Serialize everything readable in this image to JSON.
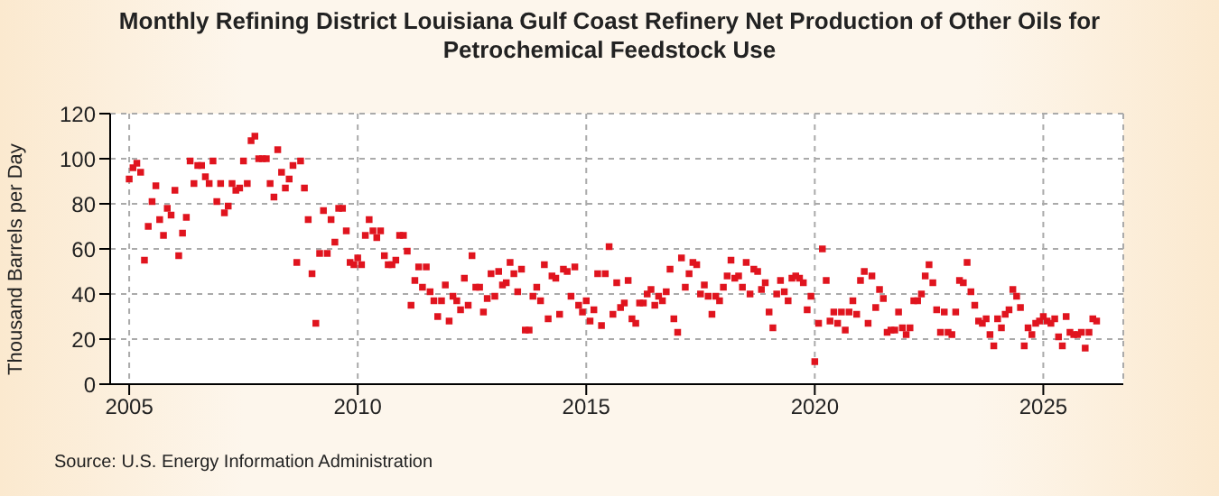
{
  "chart_data": {
    "type": "scatter",
    "title": "Monthly Refining District Louisiana Gulf Coast Refinery Net Production of Other Oils for Petrochemical Feedstock Use",
    "ylabel": "Thousand Barrels per Day",
    "annotations": [
      "Source: U.S. Energy Information Administration"
    ],
    "xlim": [
      "2004-08",
      "2026-10"
    ],
    "xticks": [
      "2005",
      "2010",
      "2015",
      "2020",
      "2025"
    ],
    "ylim": [
      0,
      120
    ],
    "yticks": [
      0,
      20,
      40,
      60,
      80,
      100,
      120
    ],
    "grid": true,
    "marker": "square",
    "series": [
      {
        "color": "#e0141e",
        "x": [
          "2005-01",
          "2005-02",
          "2005-03",
          "2005-04",
          "2005-05",
          "2005-06",
          "2005-07",
          "2005-08",
          "2005-09",
          "2005-10",
          "2005-11",
          "2005-12",
          "2006-01",
          "2006-02",
          "2006-03",
          "2006-04",
          "2006-05",
          "2006-06",
          "2006-07",
          "2006-08",
          "2006-09",
          "2006-10",
          "2006-11",
          "2006-12",
          "2007-01",
          "2007-02",
          "2007-03",
          "2007-04",
          "2007-05",
          "2007-06",
          "2007-07",
          "2007-08",
          "2007-09",
          "2007-10",
          "2007-11",
          "2007-12",
          "2008-01",
          "2008-02",
          "2008-03",
          "2008-04",
          "2008-05",
          "2008-06",
          "2008-07",
          "2008-08",
          "2008-09",
          "2008-10",
          "2008-11",
          "2008-12",
          "2009-01",
          "2009-02",
          "2009-03",
          "2009-04",
          "2009-05",
          "2009-06",
          "2009-07",
          "2009-08",
          "2009-09",
          "2009-10",
          "2009-11",
          "2009-12",
          "2010-01",
          "2010-02",
          "2010-03",
          "2010-04",
          "2010-05",
          "2010-06",
          "2010-07",
          "2010-08",
          "2010-09",
          "2010-10",
          "2010-11",
          "2010-12",
          "2011-01",
          "2011-02",
          "2011-03",
          "2011-04",
          "2011-05",
          "2011-06",
          "2011-07",
          "2011-08",
          "2011-09",
          "2011-10",
          "2011-11",
          "2011-12",
          "2012-01",
          "2012-02",
          "2012-03",
          "2012-04",
          "2012-05",
          "2012-06",
          "2012-07",
          "2012-08",
          "2012-09",
          "2012-10",
          "2012-11",
          "2012-12",
          "2013-01",
          "2013-02",
          "2013-03",
          "2013-04",
          "2013-05",
          "2013-06",
          "2013-07",
          "2013-08",
          "2013-09",
          "2013-10",
          "2013-11",
          "2013-12",
          "2014-01",
          "2014-02",
          "2014-03",
          "2014-04",
          "2014-05",
          "2014-06",
          "2014-07",
          "2014-08",
          "2014-09",
          "2014-10",
          "2014-11",
          "2014-12",
          "2015-01",
          "2015-02",
          "2015-03",
          "2015-04",
          "2015-05",
          "2015-06",
          "2015-07",
          "2015-08",
          "2015-09",
          "2015-10",
          "2015-11",
          "2015-12",
          "2016-01",
          "2016-02",
          "2016-03",
          "2016-04",
          "2016-05",
          "2016-06",
          "2016-07",
          "2016-08",
          "2016-09",
          "2016-10",
          "2016-11",
          "2016-12",
          "2017-01",
          "2017-02",
          "2017-03",
          "2017-04",
          "2017-05",
          "2017-06",
          "2017-07",
          "2017-08",
          "2017-09",
          "2017-10",
          "2017-11",
          "2017-12",
          "2018-01",
          "2018-02",
          "2018-03",
          "2018-04",
          "2018-05",
          "2018-06",
          "2018-07",
          "2018-08",
          "2018-09",
          "2018-10",
          "2018-11",
          "2018-12",
          "2019-01",
          "2019-02",
          "2019-03",
          "2019-04",
          "2019-05",
          "2019-06",
          "2019-07",
          "2019-08",
          "2019-09",
          "2019-10",
          "2019-11",
          "2019-12",
          "2020-01",
          "2020-02",
          "2020-03",
          "2020-04",
          "2020-05",
          "2020-06",
          "2020-07",
          "2020-08",
          "2020-09",
          "2020-10",
          "2020-11",
          "2020-12",
          "2021-01",
          "2021-02",
          "2021-03",
          "2021-04",
          "2021-05",
          "2021-06",
          "2021-07",
          "2021-08",
          "2021-09",
          "2021-10",
          "2021-11",
          "2021-12",
          "2022-01",
          "2022-02",
          "2022-03",
          "2022-04",
          "2022-05",
          "2022-06",
          "2022-07",
          "2022-08",
          "2022-09",
          "2022-10",
          "2022-11",
          "2022-12",
          "2023-01",
          "2023-02",
          "2023-03",
          "2023-04",
          "2023-05",
          "2023-06",
          "2023-07",
          "2023-08",
          "2023-09",
          "2023-10",
          "2023-11",
          "2023-12",
          "2024-01",
          "2024-02",
          "2024-03",
          "2024-04",
          "2024-05",
          "2024-06",
          "2024-07",
          "2024-08",
          "2024-09",
          "2024-10",
          "2024-11",
          "2024-12",
          "2025-01",
          "2025-02",
          "2025-03",
          "2025-04",
          "2025-05",
          "2025-06",
          "2025-07",
          "2025-08",
          "2025-09",
          "2025-10",
          "2025-11",
          "2025-12",
          "2026-01",
          "2026-02",
          "2026-03"
        ],
        "values": [
          91,
          96,
          98,
          94,
          55,
          70,
          81,
          88,
          73,
          66,
          78,
          75,
          86,
          57,
          67,
          74,
          99,
          89,
          97,
          97,
          92,
          89,
          99,
          81,
          89,
          76,
          79,
          89,
          86,
          87,
          99,
          89,
          108,
          110,
          100,
          100,
          100,
          89,
          83,
          104,
          94,
          87,
          91,
          97,
          54,
          99,
          87,
          73,
          49,
          27,
          58,
          77,
          58,
          73,
          63,
          78,
          78,
          68,
          54,
          53,
          56,
          53,
          66,
          73,
          68,
          65,
          68,
          57,
          53,
          53,
          55,
          66,
          66,
          59,
          35,
          46,
          52,
          43,
          52,
          41,
          37,
          30,
          37,
          44,
          28,
          39,
          37,
          33,
          47,
          35,
          57,
          43,
          43,
          32,
          38,
          49,
          39,
          50,
          44,
          45,
          54,
          49,
          41,
          51,
          24,
          24,
          39,
          43,
          37,
          53,
          29,
          48,
          47,
          31,
          51,
          50,
          39,
          52,
          35,
          32,
          37,
          28,
          33,
          49,
          26,
          49,
          61,
          31,
          45,
          34,
          36,
          46,
          29,
          27,
          36,
          36,
          40,
          42,
          35,
          39,
          37,
          41,
          51,
          29,
          23,
          56,
          43,
          49,
          54,
          53,
          40,
          44,
          39,
          31,
          39,
          37,
          43,
          48,
          55,
          47,
          48,
          43,
          54,
          40,
          51,
          50,
          42,
          45,
          32,
          25,
          40,
          46,
          41,
          37,
          47,
          48,
          47,
          45,
          33,
          39,
          10,
          27,
          60,
          46,
          28,
          32,
          27,
          32,
          24,
          32,
          37,
          31,
          46,
          50,
          27,
          48,
          34,
          42,
          38,
          23,
          24,
          24,
          32,
          25,
          22,
          25,
          37,
          37,
          40,
          48,
          53,
          45,
          33,
          23,
          32,
          23,
          22,
          32,
          46,
          45,
          54,
          41,
          35,
          28,
          27,
          29,
          22,
          17,
          29,
          25,
          31,
          33,
          42,
          39,
          34,
          17,
          25,
          22,
          27,
          28,
          30,
          28,
          27,
          29,
          21,
          17,
          30,
          23,
          22,
          22,
          23,
          16,
          23,
          29,
          28
        ]
      }
    ]
  }
}
